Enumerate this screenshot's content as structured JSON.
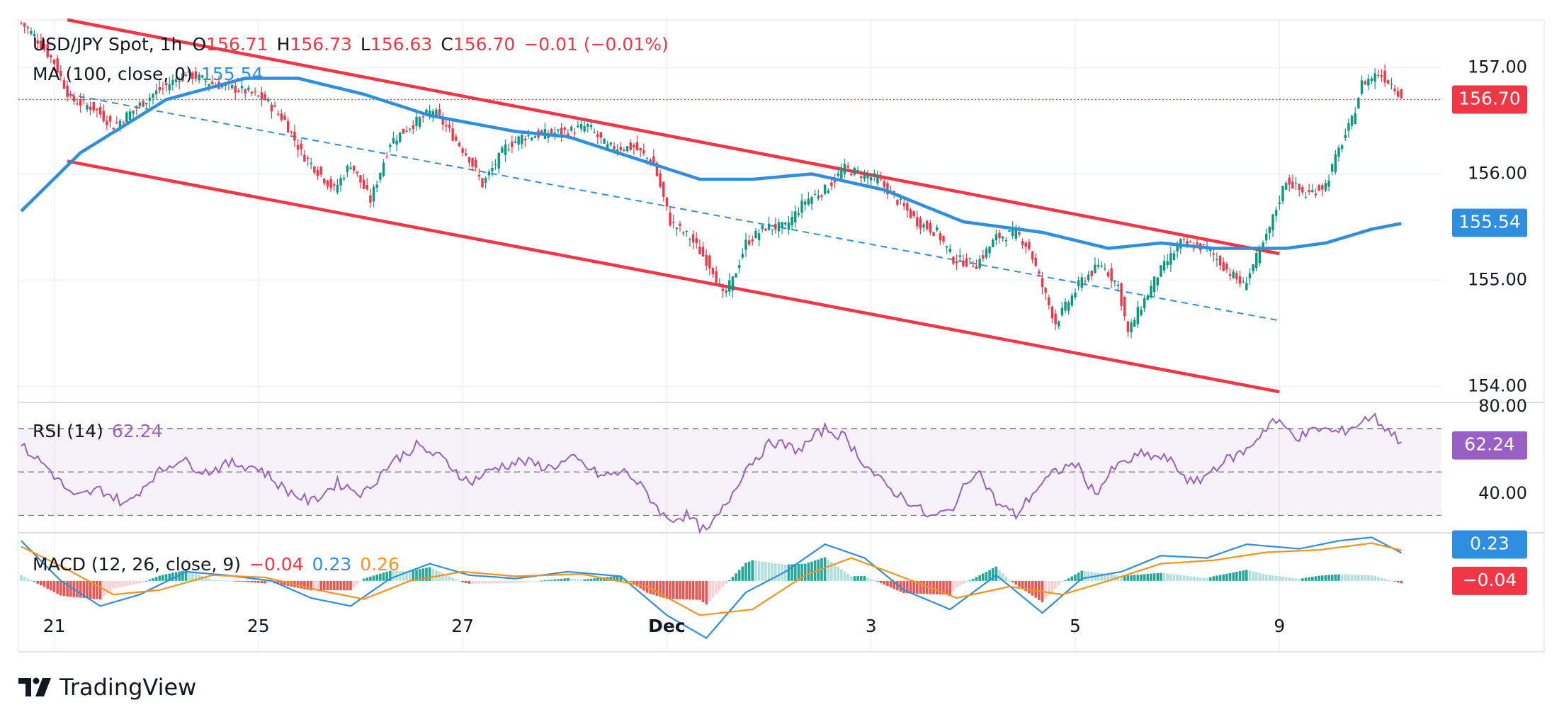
{
  "header": {
    "symbol": "USD/JPY Spot, 1h",
    "open_label": "O",
    "open": "156.71",
    "high_label": "H",
    "high": "156.73",
    "low_label": "L",
    "low": "156.63",
    "close_label": "C",
    "close": "156.70",
    "change": "−0.01 (−0.01%)",
    "ma_label": "MA (100, close, 0)",
    "ma_value": "155.54",
    "rsi_label": "RSI (14)",
    "rsi_value": "62.24",
    "macd_label": "MACD (12, 26, close, 9)",
    "macd_value": "−0.04",
    "macd_line": "0.23",
    "macd_signal": "0.26"
  },
  "brand": "TradingView",
  "colors": {
    "up": "#089981",
    "down": "#f23645",
    "ma": "#2e8fe0",
    "rsi": "#9a5fc4",
    "macd_line": "#2e8fe0",
    "signal": "#f7931a",
    "channel": "#f23645"
  },
  "chart_data": [
    {
      "type": "candlestick",
      "title": "USD/JPY Spot, 1h",
      "ylim": [
        153.85,
        157.45
      ],
      "y_ticks": [
        "157.00",
        "156.00",
        "155.00",
        "154.00"
      ],
      "x_ticks": [
        {
          "label": "21",
          "bar": 10
        },
        {
          "label": "25",
          "bar": 72
        },
        {
          "label": "27",
          "bar": 134
        },
        {
          "label": "Dec",
          "bar": 196
        },
        {
          "label": "3",
          "bar": 258
        },
        {
          "label": "5",
          "bar": 320
        },
        {
          "label": "9",
          "bar": 382
        }
      ],
      "bar_count": 420,
      "close_anchors": [
        [
          0,
          157.42
        ],
        [
          4,
          157.3
        ],
        [
          10,
          157.05
        ],
        [
          15,
          156.7
        ],
        [
          22,
          156.62
        ],
        [
          28,
          156.45
        ],
        [
          34,
          156.6
        ],
        [
          40,
          156.75
        ],
        [
          45,
          156.85
        ],
        [
          50,
          156.95
        ],
        [
          58,
          156.85
        ],
        [
          68,
          156.78
        ],
        [
          74,
          156.7
        ],
        [
          80,
          156.5
        ],
        [
          85,
          156.2
        ],
        [
          95,
          155.85
        ],
        [
          100,
          156.1
        ],
        [
          106,
          155.75
        ],
        [
          112,
          156.3
        ],
        [
          118,
          156.45
        ],
        [
          125,
          156.6
        ],
        [
          130,
          156.4
        ],
        [
          136,
          156.15
        ],
        [
          140,
          155.9
        ],
        [
          147,
          156.25
        ],
        [
          152,
          156.35
        ],
        [
          160,
          156.38
        ],
        [
          166,
          156.4
        ],
        [
          172,
          156.45
        ],
        [
          178,
          156.25
        ],
        [
          186,
          156.25
        ],
        [
          192,
          156.1
        ],
        [
          197,
          155.55
        ],
        [
          203,
          155.4
        ],
        [
          210,
          155.1
        ],
        [
          213,
          154.85
        ],
        [
          216,
          155.0
        ],
        [
          220,
          155.35
        ],
        [
          226,
          155.5
        ],
        [
          232,
          155.5
        ],
        [
          238,
          155.75
        ],
        [
          244,
          155.85
        ],
        [
          250,
          156.05
        ],
        [
          255,
          156.0
        ],
        [
          260,
          155.95
        ],
        [
          266,
          155.75
        ],
        [
          272,
          155.55
        ],
        [
          278,
          155.45
        ],
        [
          283,
          155.2
        ],
        [
          290,
          155.15
        ],
        [
          296,
          155.4
        ],
        [
          302,
          155.45
        ],
        [
          306,
          155.3
        ],
        [
          311,
          154.85
        ],
        [
          314,
          154.6
        ],
        [
          318,
          154.8
        ],
        [
          322,
          155.0
        ],
        [
          328,
          155.15
        ],
        [
          333,
          154.95
        ],
        [
          336,
          154.5
        ],
        [
          339,
          154.7
        ],
        [
          345,
          155.05
        ],
        [
          352,
          155.35
        ],
        [
          360,
          155.3
        ],
        [
          366,
          155.1
        ],
        [
          371,
          154.95
        ],
        [
          378,
          155.4
        ],
        [
          384,
          155.95
        ],
        [
          390,
          155.8
        ],
        [
          396,
          155.9
        ],
        [
          401,
          156.3
        ],
        [
          404,
          156.5
        ],
        [
          407,
          156.85
        ],
        [
          412,
          156.95
        ],
        [
          416,
          156.85
        ],
        [
          420,
          156.7
        ]
      ],
      "ma": {
        "label": "MA (100, close, 0)",
        "value": 155.54,
        "anchors": [
          [
            0,
            155.65
          ],
          [
            18,
            156.2
          ],
          [
            44,
            156.7
          ],
          [
            68,
            156.9
          ],
          [
            84,
            156.9
          ],
          [
            104,
            156.75
          ],
          [
            124,
            156.55
          ],
          [
            150,
            156.4
          ],
          [
            166,
            156.35
          ],
          [
            186,
            156.15
          ],
          [
            206,
            155.95
          ],
          [
            222,
            155.95
          ],
          [
            240,
            156.0
          ],
          [
            262,
            155.85
          ],
          [
            286,
            155.55
          ],
          [
            310,
            155.45
          ],
          [
            330,
            155.3
          ],
          [
            346,
            155.35
          ],
          [
            362,
            155.3
          ],
          [
            384,
            155.3
          ],
          [
            396,
            155.35
          ],
          [
            410,
            155.48
          ],
          [
            420,
            155.54
          ]
        ]
      },
      "channel_upper": [
        [
          14,
          157.45
        ],
        [
          382,
          155.25
        ]
      ],
      "channel_lower": [
        [
          14,
          156.12
        ],
        [
          382,
          153.95
        ]
      ],
      "channel_mid": [
        [
          14,
          156.75
        ],
        [
          382,
          154.62
        ]
      ],
      "last_price": 156.7
    },
    {
      "type": "line",
      "title": "RSI (14)",
      "ylim": [
        22,
        82
      ],
      "y_ticks": [
        "80.00",
        "40.00"
      ],
      "bands": [
        70,
        50,
        30
      ],
      "value": 62.24,
      "anchors": [
        [
          0,
          62
        ],
        [
          8,
          52
        ],
        [
          16,
          38
        ],
        [
          24,
          42
        ],
        [
          32,
          35
        ],
        [
          40,
          48
        ],
        [
          48,
          56
        ],
        [
          56,
          50
        ],
        [
          64,
          54
        ],
        [
          72,
          52
        ],
        [
          80,
          42
        ],
        [
          88,
          36
        ],
        [
          96,
          45
        ],
        [
          104,
          40
        ],
        [
          112,
          54
        ],
        [
          120,
          62
        ],
        [
          128,
          56
        ],
        [
          136,
          45
        ],
        [
          144,
          52
        ],
        [
          152,
          55
        ],
        [
          160,
          52
        ],
        [
          168,
          56
        ],
        [
          176,
          48
        ],
        [
          184,
          50
        ],
        [
          190,
          40
        ],
        [
          196,
          28
        ],
        [
          202,
          30
        ],
        [
          208,
          22
        ],
        [
          214,
          35
        ],
        [
          220,
          52
        ],
        [
          228,
          64
        ],
        [
          236,
          60
        ],
        [
          244,
          70
        ],
        [
          250,
          66
        ],
        [
          256,
          54
        ],
        [
          262,
          44
        ],
        [
          270,
          36
        ],
        [
          276,
          29
        ],
        [
          282,
          32
        ],
        [
          290,
          52
        ],
        [
          296,
          36
        ],
        [
          302,
          30
        ],
        [
          308,
          42
        ],
        [
          314,
          50
        ],
        [
          320,
          54
        ],
        [
          326,
          40
        ],
        [
          332,
          52
        ],
        [
          340,
          58
        ],
        [
          348,
          56
        ],
        [
          356,
          44
        ],
        [
          364,
          54
        ],
        [
          372,
          60
        ],
        [
          380,
          74
        ],
        [
          388,
          66
        ],
        [
          394,
          70
        ],
        [
          400,
          68
        ],
        [
          406,
          72
        ],
        [
          410,
          76
        ],
        [
          416,
          68
        ],
        [
          420,
          62.24
        ]
      ]
    },
    {
      "type": "line",
      "title": "MACD (12, 26, close, 9)",
      "ylim": [
        -0.62,
        0.42
      ],
      "macd": -0.04,
      "macd_line_value": 0.23,
      "signal_value": 0.26,
      "macd_anchors": [
        [
          0,
          0.35
        ],
        [
          12,
          0.0
        ],
        [
          24,
          -0.22
        ],
        [
          36,
          -0.12
        ],
        [
          50,
          0.08
        ],
        [
          62,
          0.05
        ],
        [
          76,
          0.0
        ],
        [
          88,
          -0.15
        ],
        [
          100,
          -0.22
        ],
        [
          112,
          0.02
        ],
        [
          124,
          0.15
        ],
        [
          136,
          0.05
        ],
        [
          150,
          0.02
        ],
        [
          166,
          0.08
        ],
        [
          182,
          0.04
        ],
        [
          196,
          -0.3
        ],
        [
          208,
          -0.5
        ],
        [
          220,
          -0.1
        ],
        [
          232,
          0.08
        ],
        [
          244,
          0.32
        ],
        [
          256,
          0.2
        ],
        [
          268,
          -0.08
        ],
        [
          282,
          -0.25
        ],
        [
          296,
          0.05
        ],
        [
          310,
          -0.28
        ],
        [
          322,
          0.02
        ],
        [
          334,
          0.08
        ],
        [
          346,
          0.22
        ],
        [
          360,
          0.2
        ],
        [
          372,
          0.32
        ],
        [
          388,
          0.28
        ],
        [
          400,
          0.35
        ],
        [
          410,
          0.38
        ],
        [
          420,
          0.23
        ]
      ],
      "signal_anchors": [
        [
          0,
          0.3
        ],
        [
          14,
          0.1
        ],
        [
          28,
          -0.12
        ],
        [
          42,
          -0.08
        ],
        [
          58,
          0.05
        ],
        [
          74,
          0.03
        ],
        [
          90,
          -0.08
        ],
        [
          104,
          -0.16
        ],
        [
          118,
          0.0
        ],
        [
          134,
          0.08
        ],
        [
          150,
          0.04
        ],
        [
          170,
          0.06
        ],
        [
          190,
          -0.05
        ],
        [
          206,
          -0.3
        ],
        [
          222,
          -0.25
        ],
        [
          238,
          0.05
        ],
        [
          252,
          0.2
        ],
        [
          266,
          0.05
        ],
        [
          284,
          -0.15
        ],
        [
          300,
          -0.05
        ],
        [
          316,
          -0.12
        ],
        [
          330,
          0.0
        ],
        [
          346,
          0.15
        ],
        [
          362,
          0.18
        ],
        [
          378,
          0.25
        ],
        [
          394,
          0.27
        ],
        [
          410,
          0.33
        ],
        [
          420,
          0.26
        ]
      ]
    }
  ]
}
